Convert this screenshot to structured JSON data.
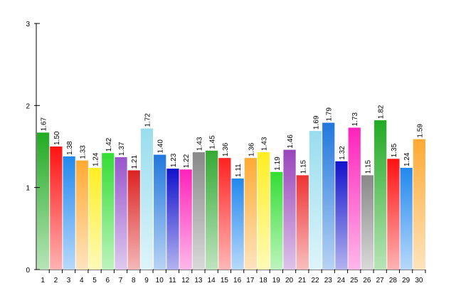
{
  "chart_data": {
    "type": "bar",
    "categories": [
      "1",
      "2",
      "3",
      "4",
      "5",
      "6",
      "7",
      "8",
      "9",
      "10",
      "11",
      "12",
      "13",
      "14",
      "15",
      "16",
      "17",
      "18",
      "19",
      "20",
      "21",
      "22",
      "23",
      "24",
      "25",
      "26",
      "27",
      "28",
      "29",
      "30"
    ],
    "values": [
      1.67,
      1.5,
      1.38,
      1.33,
      1.24,
      1.42,
      1.37,
      1.21,
      1.72,
      1.4,
      1.23,
      1.22,
      1.43,
      1.45,
      1.36,
      1.11,
      1.36,
      1.43,
      1.19,
      1.46,
      1.15,
      1.69,
      1.79,
      1.32,
      1.73,
      1.15,
      1.82,
      1.35,
      1.24,
      1.59
    ],
    "value_labels": [
      "1.67",
      "1.50",
      "1.38",
      "1.33",
      "1.24",
      "1.42",
      "1.37",
      "1.21",
      "1.72",
      "1.40",
      "1.23",
      "1.22",
      "1.43",
      "1.45",
      "1.36",
      "1.11",
      "1.36",
      "1.43",
      "1.19",
      "1.46",
      "1.15",
      "1.69",
      "1.79",
      "1.32",
      "1.73",
      "1.15",
      "1.82",
      "1.35",
      "1.24",
      "1.59"
    ],
    "colors": [
      "#22aa22",
      "#ff1111",
      "#2288ee",
      "#ffaa33",
      "#ffee22",
      "#33dd33",
      "#9955cc",
      "#dd2222",
      "#99ddee",
      "#2277dd",
      "#1111cc",
      "#ff22bb",
      "#888888",
      "#33aa33",
      "#ff2222",
      "#2288ee",
      "#ffaa33",
      "#ffee22",
      "#33dd33",
      "#9944bb",
      "#ee3333",
      "#99ddee",
      "#2277dd",
      "#1111cc",
      "#ff22bb",
      "#888888",
      "#22aa22",
      "#ff1111",
      "#2288ee",
      "#ffaa33"
    ],
    "ylim": [
      0,
      3
    ],
    "yticks": [
      "0",
      "1",
      "2",
      "3"
    ],
    "title": "",
    "xlabel": "",
    "ylabel": "",
    "grid": false,
    "legend": "none"
  }
}
